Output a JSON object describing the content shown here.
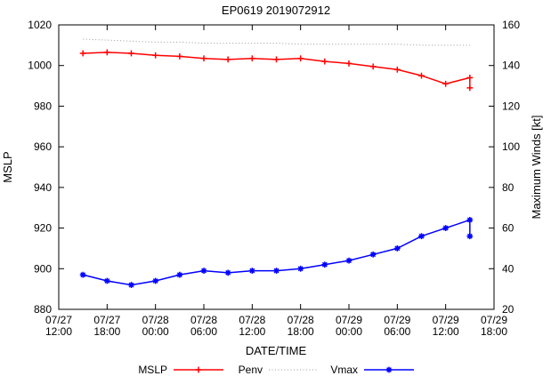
{
  "chart_data": {
    "type": "line",
    "title": "EP0619 2019072912",
    "xlabel": "DATE/TIME",
    "x_range_hours": [
      0,
      54
    ],
    "x_ticks": [
      {
        "hour": 0,
        "line1": "07/27",
        "line2": "12:00"
      },
      {
        "hour": 6,
        "line1": "07/27",
        "line2": "18:00"
      },
      {
        "hour": 12,
        "line1": "07/28",
        "line2": "00:00"
      },
      {
        "hour": 18,
        "line1": "07/28",
        "line2": "06:00"
      },
      {
        "hour": 24,
        "line1": "07/28",
        "line2": "12:00"
      },
      {
        "hour": 30,
        "line1": "07/28",
        "line2": "18:00"
      },
      {
        "hour": 36,
        "line1": "07/29",
        "line2": "00:00"
      },
      {
        "hour": 42,
        "line1": "07/29",
        "line2": "06:00"
      },
      {
        "hour": 48,
        "line1": "07/29",
        "line2": "12:00"
      },
      {
        "hour": 54,
        "line1": "07/29",
        "line2": "18:00"
      }
    ],
    "y_left": {
      "label": "MSLP",
      "min": 880,
      "max": 1020,
      "step": 20
    },
    "y_right": {
      "label": "Maximum Winds [kt]",
      "min": 20,
      "max": 160,
      "step": 20
    },
    "x_hours": [
      3,
      6,
      9,
      12,
      15,
      18,
      21,
      24,
      27,
      30,
      33,
      36,
      39,
      42,
      45,
      48,
      51
    ],
    "series": [
      {
        "name": "MSLP",
        "axis": "left",
        "color": "#ff0000",
        "marker": "plus",
        "linestyle": "solid",
        "values": [
          1006,
          1006.5,
          1006,
          1005,
          1004.5,
          1003.5,
          1003,
          1003.5,
          1003,
          1003.5,
          1002,
          1001,
          999.5,
          998,
          995,
          991,
          994
        ],
        "extra_point": {
          "hour": 51,
          "value": 989
        }
      },
      {
        "name": "Penv",
        "axis": "left",
        "color": "#9a9a9a",
        "marker": "none",
        "linestyle": "dotted",
        "values": [
          1013,
          1012.5,
          1012,
          1011.5,
          1011.5,
          1011,
          1011,
          1011,
          1011,
          1010.5,
          1010.5,
          1010.5,
          1010.5,
          1010.5,
          1010,
          1010,
          1010
        ]
      },
      {
        "name": "Vmax",
        "axis": "right",
        "color": "#0000ff",
        "marker": "star",
        "linestyle": "solid",
        "values": [
          37,
          34,
          32,
          34,
          37,
          39,
          38,
          39,
          39,
          40,
          42,
          44,
          47,
          50,
          56,
          60,
          64
        ],
        "extra_point": {
          "hour": 51,
          "value": 56
        }
      }
    ],
    "legend_position": "bottom-center"
  }
}
